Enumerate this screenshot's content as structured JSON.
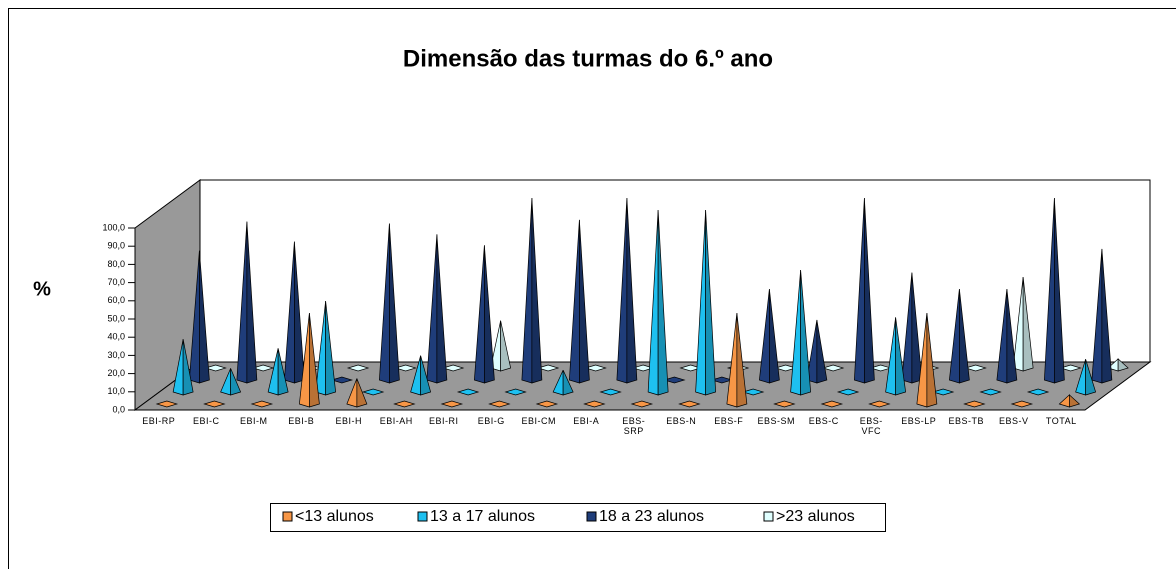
{
  "chart_data": {
    "type": "pyramid3d",
    "title": "Dimensão das turmas do 6.º ano",
    "y_label": "%",
    "categories": [
      "EBI-RP",
      "EBI-C",
      "EBI-M",
      "EBI-B",
      "EBI-H",
      "EBI-AH",
      "EBI-RI",
      "EBI-G",
      "EBI-CM",
      "EBI-A",
      "EBS-SRP",
      "EBS-N",
      "EBS-F",
      "EBS-SM",
      "EBS-C",
      "EBS-VFC",
      "EBS-LP",
      "EBS-TB",
      "EBS-V",
      "TOTAL"
    ],
    "series": [
      {
        "name": "<13 alunos",
        "color": "#f79646",
        "values": [
          0,
          0,
          0,
          50,
          14,
          0,
          0,
          0,
          0,
          0,
          0,
          0,
          50,
          0,
          0,
          0,
          50,
          0,
          0,
          5
        ]
      },
      {
        "name": "13 a 17 alunos",
        "color": "#1ec0f0",
        "values": [
          29,
          13,
          24,
          50,
          0,
          20,
          0,
          0,
          12,
          0,
          100,
          100,
          0,
          67,
          0,
          41,
          0,
          0,
          0,
          18
        ]
      },
      {
        "name": "18 a 23 alunos",
        "color": "#1f3d7a",
        "values": [
          71,
          87,
          76,
          0,
          86,
          80,
          74,
          100,
          88,
          100,
          0,
          0,
          50,
          33,
          100,
          59,
          50,
          50,
          100,
          72
        ]
      },
      {
        "name": ">23 alunos",
        "color": "#e0ffff",
        "values": [
          0,
          0,
          0,
          0,
          0,
          0,
          26,
          0,
          0,
          0,
          0,
          0,
          0,
          0,
          0,
          0,
          0,
          50,
          0,
          5
        ]
      }
    ],
    "ylim": [
      0,
      100
    ],
    "yticks": [
      {
        "value": 0,
        "label": "0,0"
      },
      {
        "value": 10,
        "label": "10,0"
      },
      {
        "value": 20,
        "label": "20,0"
      },
      {
        "value": 30,
        "label": "30,0"
      },
      {
        "value": 40,
        "label": "40,0"
      },
      {
        "value": 50,
        "label": "50,0"
      },
      {
        "value": 60,
        "label": "60,0"
      },
      {
        "value": 70,
        "label": "70,0"
      },
      {
        "value": 80,
        "label": "80,0"
      },
      {
        "value": 90,
        "label": "90,0"
      },
      {
        "value": 100,
        "label": "100,0"
      }
    ],
    "legend": "bottom"
  }
}
